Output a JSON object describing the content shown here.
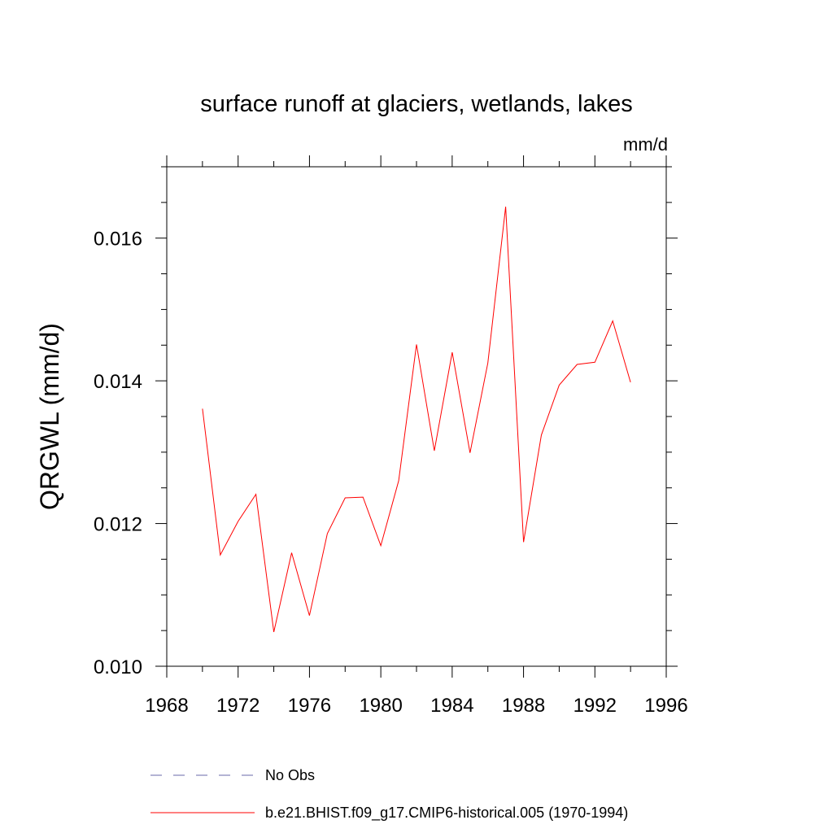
{
  "chart_data": {
    "type": "line",
    "title": "surface runoff at glaciers, wetlands, lakes",
    "units_label": "mm/d",
    "ylabel": "QRGWL  (mm/d)",
    "xlabel": "",
    "xlim": [
      1968,
      1996
    ],
    "ylim": [
      0.01,
      0.017
    ],
    "x_ticks": [
      "1968",
      "1972",
      "1976",
      "1980",
      "1984",
      "1988",
      "1992",
      "1996"
    ],
    "y_ticks": [
      "0.010",
      "0.012",
      "0.014",
      "0.016"
    ],
    "grid": false,
    "legend_placement": "bottom",
    "x": [
      1970,
      1971,
      1972,
      1973,
      1974,
      1975,
      1976,
      1977,
      1978,
      1979,
      1980,
      1981,
      1982,
      1983,
      1984,
      1985,
      1986,
      1987,
      1988,
      1989,
      1990,
      1991,
      1992,
      1993,
      1994
    ],
    "series": [
      {
        "name": "b.e21.BHIST.f09_g17.CMIP6-historical.005 (1970-1994)",
        "color": "#ff0000",
        "style": "solid",
        "values": [
          0.01361,
          0.01156,
          0.01203,
          0.01241,
          0.01048,
          0.01159,
          0.01071,
          0.01186,
          0.01236,
          0.01237,
          0.01169,
          0.0126,
          0.01451,
          0.01302,
          0.0144,
          0.01299,
          0.01425,
          0.01644,
          0.01174,
          0.01324,
          0.01394,
          0.01423,
          0.01426,
          0.01484,
          0.01398
        ]
      }
    ],
    "legend": [
      {
        "label": "No Obs",
        "color": "#6a6aaa",
        "style": "dashed"
      },
      {
        "label": "b.e21.BHIST.f09_g17.CMIP6-historical.005 (1970-1994)",
        "color": "#ff0000",
        "style": "solid"
      }
    ]
  }
}
